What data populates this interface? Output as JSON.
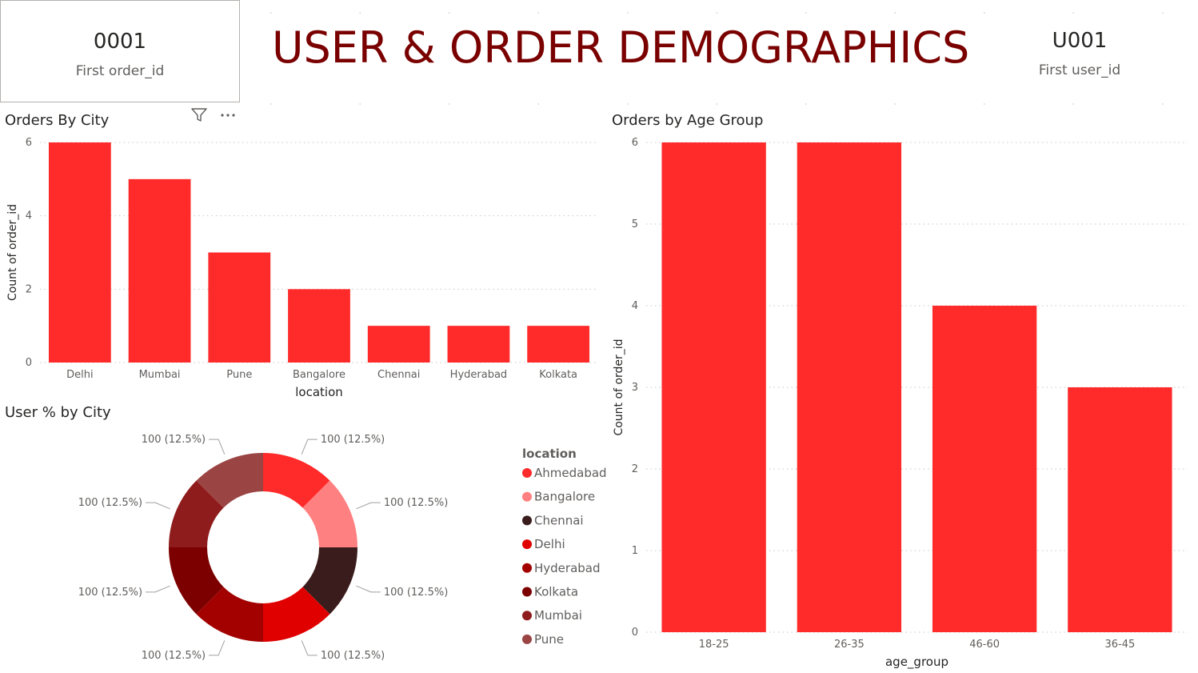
{
  "kpi_left": {
    "value": "0001",
    "label": "First order_id"
  },
  "kpi_right": {
    "value": "U001",
    "label": "First user_id"
  },
  "page_title": "USER & ORDER DEMOGRAPHICS",
  "icons": {
    "filter": "filter-icon",
    "more": "more-options-icon"
  },
  "colors": {
    "bar": "#ff2a2a",
    "title": "#7a0000"
  },
  "chart_data": [
    {
      "type": "bar",
      "title": "Orders By City",
      "xlabel": "location",
      "ylabel": "Count of order_id",
      "categories": [
        "Delhi",
        "Mumbai",
        "Pune",
        "Bangalore",
        "Chennai",
        "Hyderabad",
        "Kolkata"
      ],
      "values": [
        6,
        5,
        3,
        2,
        1,
        1,
        1
      ],
      "ylim": [
        0,
        6
      ],
      "yticks": [
        0,
        2,
        4,
        6
      ],
      "grid": true
    },
    {
      "type": "bar",
      "title": "Orders by Age Group",
      "xlabel": "age_group",
      "ylabel": "Count of order_id",
      "categories": [
        "18-25",
        "26-35",
        "46-60",
        "36-45"
      ],
      "values": [
        6,
        6,
        4,
        3
      ],
      "ylim": [
        0,
        6
      ],
      "yticks": [
        0,
        1,
        2,
        3,
        4,
        5,
        6
      ],
      "grid": true
    },
    {
      "type": "pie",
      "title": "User % by City",
      "legend_title": "location",
      "legend_position": "right",
      "labels": [
        "Ahmedabad",
        "Bangalore",
        "Chennai",
        "Delhi",
        "Hyderabad",
        "Kolkata",
        "Mumbai",
        "Pune"
      ],
      "values": [
        100,
        100,
        100,
        100,
        100,
        100,
        100,
        100
      ],
      "data_labels": [
        "100 (12.5%)",
        "100 (12.5%)",
        "100 (12.5%)",
        "100 (12.5%)",
        "100 (12.5%)",
        "100 (12.5%)",
        "100 (12.5%)",
        "100 (12.5%)"
      ],
      "colors": [
        "#ff2a2a",
        "#ff8080",
        "#3b1c1c",
        "#e00000",
        "#a30000",
        "#7d0000",
        "#8f1c1c",
        "#9b4444"
      ]
    }
  ]
}
